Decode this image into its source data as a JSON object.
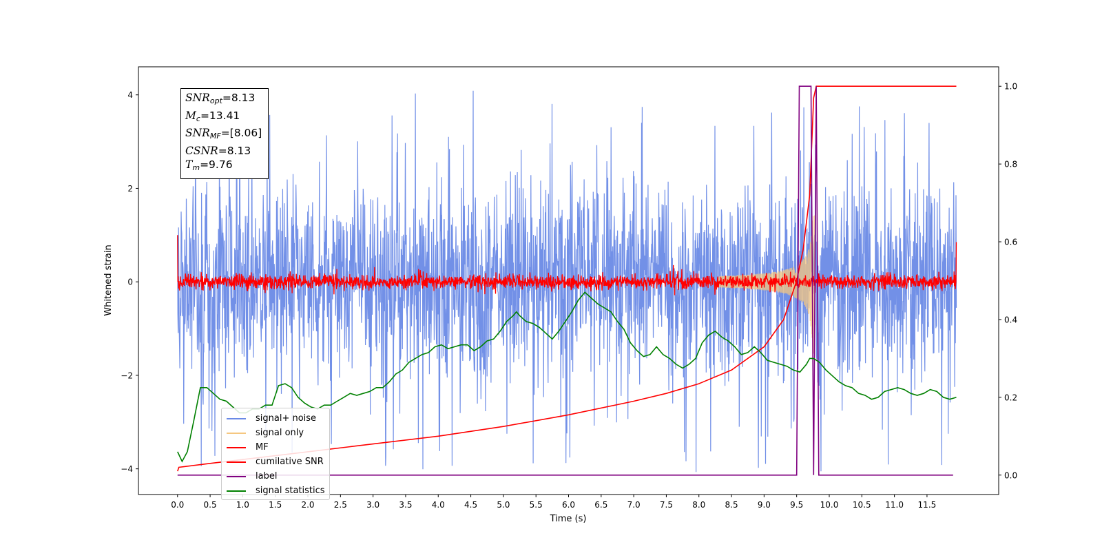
{
  "chart_data": {
    "type": "line",
    "xlabel": "Time (s)",
    "ylabel": "Whitened strain",
    "xlim": [
      -0.6,
      12.6
    ],
    "ylim": [
      -4.55,
      4.6
    ],
    "y2lim": [
      -0.05,
      1.05
    ],
    "xticks": [
      "0.0",
      "0.5",
      "1.0",
      "1.5",
      "2.0",
      "2.5",
      "3.0",
      "3.5",
      "4.0",
      "4.5",
      "5.0",
      "5.5",
      "6.0",
      "6.5",
      "7.0",
      "7.5",
      "8.0",
      "8.5",
      "9.0",
      "9.5",
      "10.0",
      "10.5",
      "11.0",
      "11.5"
    ],
    "yticks": [
      "−4",
      "−2",
      "0",
      "2",
      "4"
    ],
    "y2ticks": [
      "0.0",
      "0.2",
      "0.4",
      "0.6",
      "0.8",
      "1.0"
    ],
    "annotations": [
      {
        "sym": "SNR",
        "sub": "opt",
        "rest": "=8.13"
      },
      {
        "sym": "M",
        "sub": "c",
        "rest": "=13.41"
      },
      {
        "sym": "SNR",
        "sub": "MF",
        "rest": "=[8.06]"
      },
      {
        "sym": "CSNR",
        "sub": "",
        "rest": "=8.13"
      },
      {
        "sym": "T",
        "sub": "m",
        "rest": "=9.76"
      }
    ],
    "legend_position": "lower-left",
    "series": [
      {
        "name": "signal+ noise",
        "color": "#6a8ae6",
        "axis": "left",
        "description": "noise band, approx. ±2.5 with spikes to ±4, from t=0 to 12"
      },
      {
        "name": "signal only",
        "color": "#f5c780",
        "axis": "left",
        "description": "chirp envelope growing from t≈8.5, peak ≈1.5 near t=9.76"
      },
      {
        "name": "MF",
        "color": "#ff0000",
        "axis": "left",
        "description": "noise around 0 with amplitude ≈0.15"
      },
      {
        "name": "cumilative SNR",
        "color": "#ff0000",
        "axis": "right",
        "x": [
          0.0,
          0.02,
          0.5,
          1.0,
          2.0,
          3.0,
          4.0,
          5.0,
          6.0,
          7.0,
          7.5,
          8.0,
          8.5,
          9.0,
          9.3,
          9.5,
          9.6,
          9.7,
          9.76,
          9.8,
          11.95
        ],
        "y": [
          0.01,
          0.02,
          0.03,
          0.04,
          0.06,
          0.08,
          0.1,
          0.125,
          0.155,
          0.19,
          0.21,
          0.235,
          0.27,
          0.33,
          0.4,
          0.5,
          0.58,
          0.72,
          0.97,
          1.0,
          1.0
        ]
      },
      {
        "name": "label",
        "color": "#800080",
        "axis": "right",
        "x": [
          0.0,
          9.5,
          9.54,
          9.72,
          9.76,
          9.8,
          9.84,
          11.9
        ],
        "y": [
          0.0,
          0.0,
          1.0,
          1.0,
          0.0,
          1.0,
          0.0,
          0.0
        ]
      },
      {
        "name": "signal statistics",
        "color": "#008000",
        "axis": "right",
        "x": [
          0.0,
          0.07,
          0.15,
          0.25,
          0.35,
          0.45,
          0.55,
          0.65,
          0.75,
          0.85,
          0.95,
          1.05,
          1.15,
          1.25,
          1.35,
          1.45,
          1.55,
          1.65,
          1.75,
          1.85,
          1.95,
          2.05,
          2.15,
          2.25,
          2.35,
          2.45,
          2.55,
          2.65,
          2.75,
          2.85,
          2.95,
          3.05,
          3.15,
          3.25,
          3.35,
          3.45,
          3.55,
          3.65,
          3.75,
          3.85,
          3.95,
          4.05,
          4.15,
          4.25,
          4.35,
          4.45,
          4.55,
          4.65,
          4.75,
          4.85,
          4.95,
          5.05,
          5.15,
          5.2,
          5.25,
          5.35,
          5.45,
          5.55,
          5.65,
          5.75,
          5.85,
          5.95,
          6.05,
          6.15,
          6.25,
          6.35,
          6.45,
          6.55,
          6.65,
          6.75,
          6.85,
          6.95,
          7.05,
          7.15,
          7.25,
          7.35,
          7.45,
          7.55,
          7.65,
          7.75,
          7.85,
          7.95,
          8.05,
          8.15,
          8.25,
          8.35,
          8.45,
          8.55,
          8.65,
          8.75,
          8.85,
          8.95,
          9.05,
          9.15,
          9.25,
          9.35,
          9.45,
          9.55,
          9.65,
          9.7,
          9.76,
          9.85,
          9.95,
          10.05,
          10.15,
          10.25,
          10.35,
          10.45,
          10.55,
          10.65,
          10.75,
          10.85,
          10.95,
          11.05,
          11.15,
          11.25,
          11.35,
          11.45,
          11.55,
          11.65,
          11.75,
          11.85,
          11.95
        ],
        "y": [
          0.06,
          0.035,
          0.06,
          0.14,
          0.225,
          0.225,
          0.21,
          0.195,
          0.19,
          0.175,
          0.16,
          0.16,
          0.17,
          0.17,
          0.18,
          0.18,
          0.23,
          0.235,
          0.225,
          0.2,
          0.185,
          0.175,
          0.17,
          0.18,
          0.18,
          0.19,
          0.2,
          0.21,
          0.205,
          0.21,
          0.215,
          0.225,
          0.225,
          0.24,
          0.26,
          0.27,
          0.29,
          0.3,
          0.31,
          0.315,
          0.33,
          0.335,
          0.325,
          0.33,
          0.335,
          0.335,
          0.32,
          0.33,
          0.345,
          0.35,
          0.37,
          0.395,
          0.41,
          0.42,
          0.41,
          0.395,
          0.39,
          0.38,
          0.365,
          0.35,
          0.37,
          0.395,
          0.42,
          0.45,
          0.47,
          0.455,
          0.44,
          0.43,
          0.42,
          0.395,
          0.375,
          0.34,
          0.32,
          0.305,
          0.31,
          0.33,
          0.31,
          0.3,
          0.285,
          0.275,
          0.285,
          0.3,
          0.34,
          0.36,
          0.37,
          0.355,
          0.345,
          0.33,
          0.31,
          0.315,
          0.33,
          0.315,
          0.295,
          0.29,
          0.285,
          0.28,
          0.27,
          0.265,
          0.285,
          0.3,
          0.3,
          0.29,
          0.27,
          0.255,
          0.24,
          0.23,
          0.225,
          0.21,
          0.205,
          0.195,
          0.2,
          0.215,
          0.22,
          0.225,
          0.22,
          0.21,
          0.205,
          0.21,
          0.22,
          0.215,
          0.2,
          0.195,
          0.2
        ]
      }
    ]
  }
}
